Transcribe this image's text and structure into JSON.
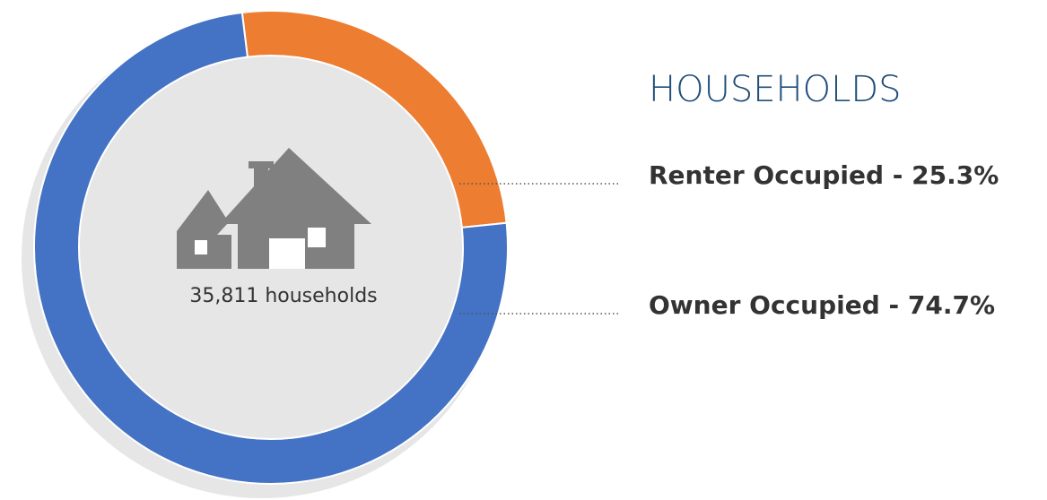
{
  "chart_data": {
    "type": "donut",
    "title": "HOUSEHOLDS",
    "annotation": "35,811 households",
    "values": [
      25.3,
      74.7
    ],
    "value_labels": [
      "Renter Occupied - 25.3%",
      "Owner Occupied - 74.7%"
    ],
    "colors": [
      "#ed7d31",
      "#4472c4"
    ]
  }
}
